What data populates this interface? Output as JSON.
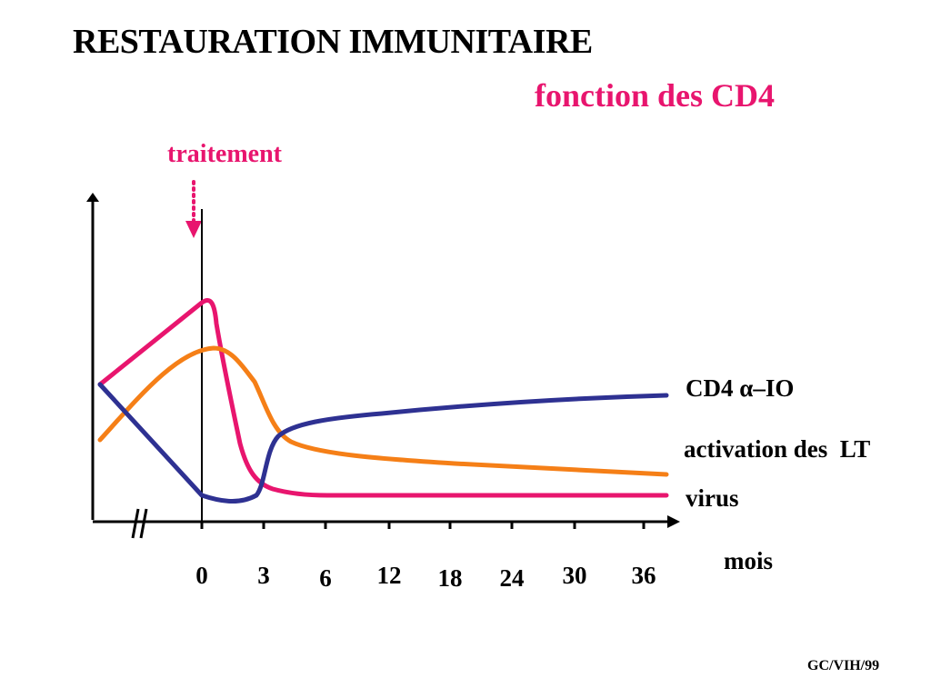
{
  "slide": {
    "title": "RESTAURATION IMMUNITAIRE",
    "subtitle": "fonction des CD4",
    "footer": "GC/VIH/99"
  },
  "colors": {
    "cd4": "#2e3192",
    "activation": "#f57f17",
    "virus": "#e8156e",
    "axis": "#000000",
    "annotation": "#e8156e"
  },
  "chart_data": {
    "type": "line",
    "title": "RESTAURATION IMMUNITAIRE",
    "subtitle": "fonction des CD4",
    "xlabel": "mois",
    "ylabel": "",
    "x_ticks": [
      "0",
      "3",
      "6",
      "12",
      "18",
      "24",
      "30",
      "36"
    ],
    "axis_break": "//",
    "annotation": {
      "text": "traitement",
      "at_x": "0",
      "arrow": "dotted-down"
    },
    "grid": false,
    "legend": "right-end labels",
    "series": [
      {
        "name": "CD4 α–IO",
        "color": "#2e3192",
        "shape": "declines before treatment to a minimum near month 1-3, then rises sharply and plateaus high"
      },
      {
        "name": "activation des  LT",
        "color": "#f57f17",
        "shape": "rises to a peak just after treatment, then declines and levels off at a moderate value"
      },
      {
        "name": "virus",
        "color": "#e8156e",
        "shape": "rises to a peak at treatment start, then drops sharply by month 6 and stays low"
      }
    ]
  }
}
